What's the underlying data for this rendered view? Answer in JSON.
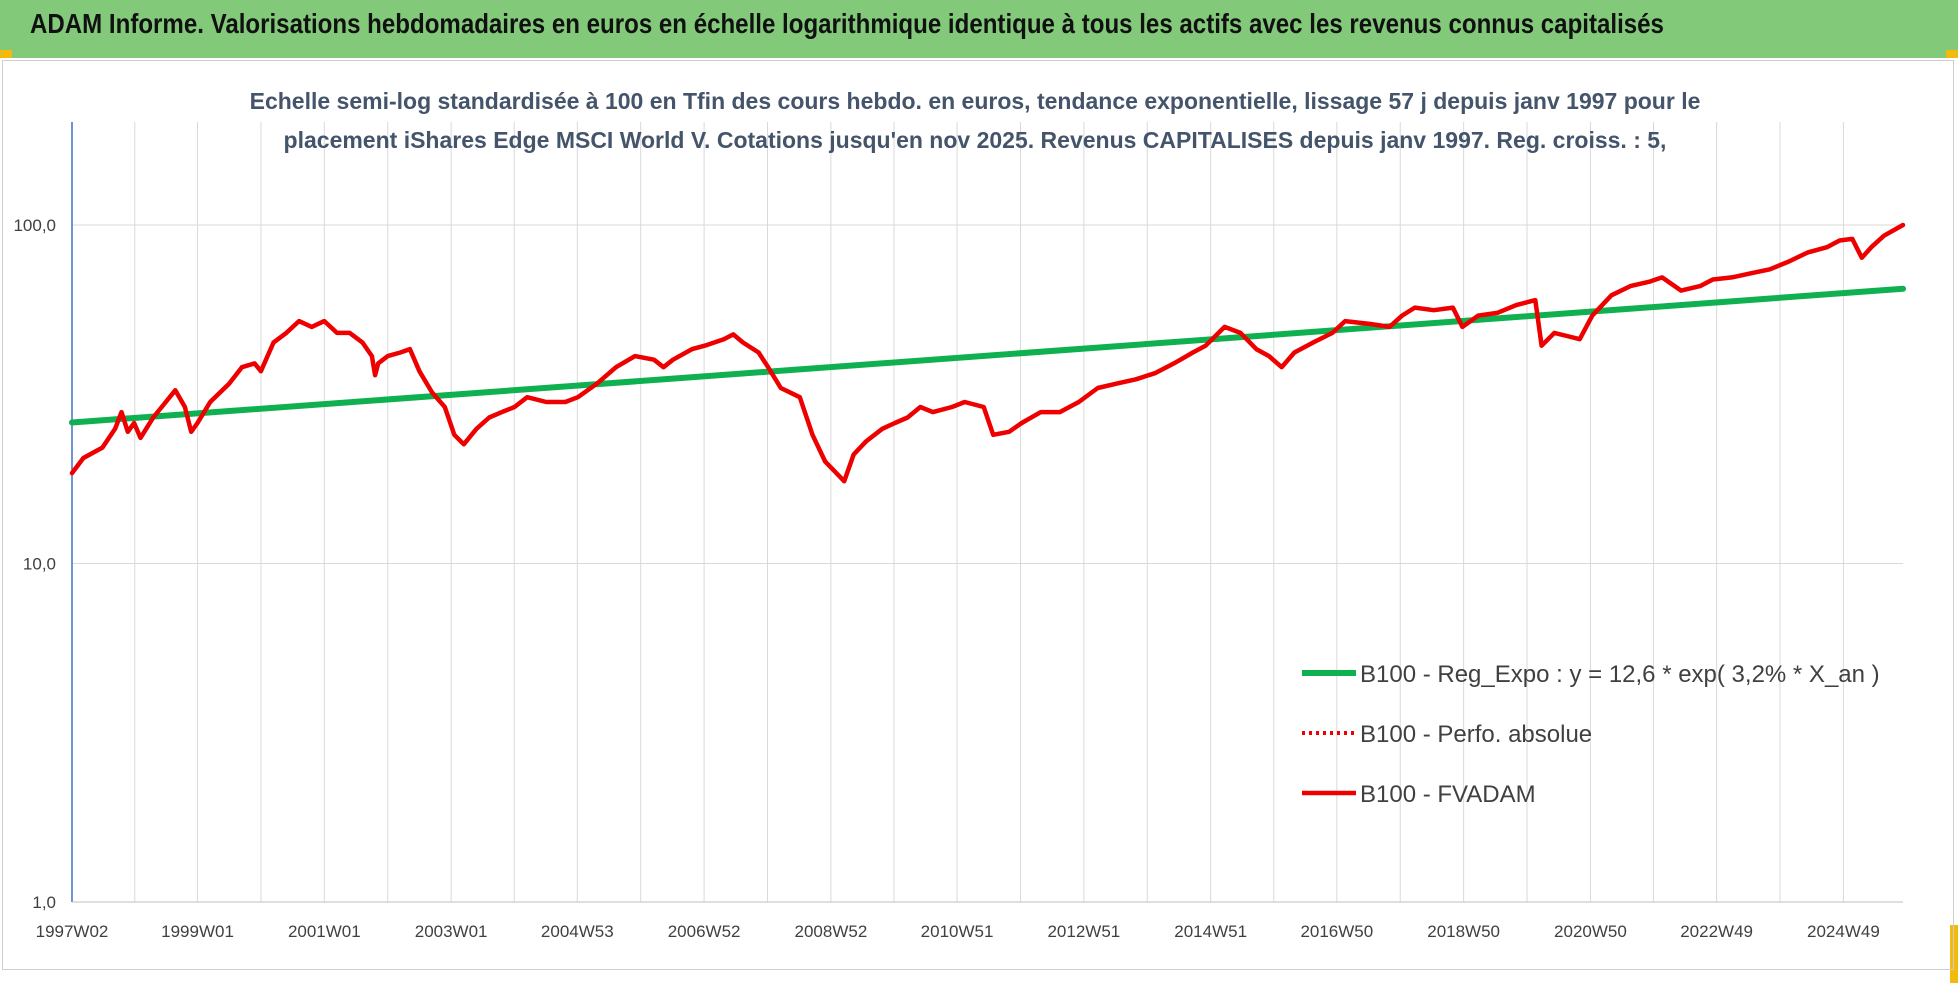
{
  "header": {
    "title": "ADAM Informe. Valorisations hebdomadaires en euros en échelle logarithmique identique à tous les actifs avec les revenus connus capitalisés"
  },
  "colors": {
    "header_bg": "#82c97a",
    "trend": "#0fb050",
    "fvadam": "#ee0000",
    "perfo": "#ee0000",
    "corner": "#f2b90f"
  },
  "chart_data": {
    "type": "line",
    "subtitle_lines": [
      "Echelle semi-log standardisée à 100 en Tfin des cours hebdo. en euros, tendance exponentielle, lissage 57 j depuis janv 1997 pour le",
      "placement iShares Edge MSCI World V. Cotations jusqu'en nov 2025. Revenus CAPITALISES depuis janv 1997. Reg. croiss. : 5,"
    ],
    "y_scale": "log",
    "ylim": [
      1,
      180
    ],
    "y_ticks": [
      {
        "value": 1,
        "label": "1,0"
      },
      {
        "value": 10,
        "label": "10,0"
      },
      {
        "value": 100,
        "label": "100,0"
      }
    ],
    "xlim": [
      1997.02,
      2025.9
    ],
    "x_ticks": [
      {
        "value": 1997.02,
        "label": "1997W02"
      },
      {
        "value": 1999.0,
        "label": "1999W01"
      },
      {
        "value": 2001.0,
        "label": "2001W01"
      },
      {
        "value": 2003.0,
        "label": "2003W01"
      },
      {
        "value": 2004.99,
        "label": "2004W53"
      },
      {
        "value": 2006.99,
        "label": "2006W52"
      },
      {
        "value": 2008.99,
        "label": "2008W52"
      },
      {
        "value": 2010.98,
        "label": "2010W51"
      },
      {
        "value": 2012.98,
        "label": "2012W51"
      },
      {
        "value": 2014.98,
        "label": "2014W51"
      },
      {
        "value": 2016.97,
        "label": "2016W50"
      },
      {
        "value": 2018.97,
        "label": "2018W50"
      },
      {
        "value": 2020.97,
        "label": "2020W50"
      },
      {
        "value": 2022.96,
        "label": "2022W49"
      },
      {
        "value": 2024.96,
        "label": "2024W49"
      }
    ],
    "grid": "vertical-minor-and-horizontal-major",
    "legend_position": "bottom-right",
    "series": [
      {
        "name": "B100 - Reg_Expo : y = 12,6 * exp( 3,2% *  X_an )",
        "style": "solid-green",
        "points": [
          [
            1997.02,
            26.1
          ],
          [
            2025.9,
            64.8
          ]
        ]
      },
      {
        "name": "B100 - Perfo. absolue",
        "style": "dotted-red",
        "points": []
      },
      {
        "name": "B100 - FVADAM",
        "style": "solid-red",
        "points": [
          [
            1997.02,
            18.5
          ],
          [
            1997.2,
            20.5
          ],
          [
            1997.5,
            22
          ],
          [
            1997.7,
            25
          ],
          [
            1997.8,
            28
          ],
          [
            1997.9,
            24.5
          ],
          [
            1998.0,
            26
          ],
          [
            1998.1,
            23.5
          ],
          [
            1998.3,
            27
          ],
          [
            1998.5,
            30
          ],
          [
            1998.65,
            32.5
          ],
          [
            1998.8,
            29
          ],
          [
            1998.9,
            24.5
          ],
          [
            1999.0,
            26
          ],
          [
            1999.2,
            30
          ],
          [
            1999.5,
            34
          ],
          [
            1999.7,
            38
          ],
          [
            1999.9,
            39
          ],
          [
            2000.0,
            37
          ],
          [
            2000.2,
            45
          ],
          [
            2000.4,
            48
          ],
          [
            2000.6,
            52
          ],
          [
            2000.8,
            50
          ],
          [
            2001.0,
            52
          ],
          [
            2001.2,
            48
          ],
          [
            2001.4,
            48
          ],
          [
            2001.6,
            45
          ],
          [
            2001.75,
            41
          ],
          [
            2001.8,
            36
          ],
          [
            2001.85,
            39
          ],
          [
            2002.0,
            41
          ],
          [
            2002.2,
            42
          ],
          [
            2002.35,
            43
          ],
          [
            2002.5,
            37
          ],
          [
            2002.7,
            32
          ],
          [
            2002.9,
            29
          ],
          [
            2003.05,
            24
          ],
          [
            2003.2,
            22.5
          ],
          [
            2003.4,
            25
          ],
          [
            2003.6,
            27
          ],
          [
            2003.8,
            28
          ],
          [
            2004.0,
            29
          ],
          [
            2004.2,
            31
          ],
          [
            2004.5,
            30
          ],
          [
            2004.8,
            30
          ],
          [
            2005.0,
            31
          ],
          [
            2005.3,
            34
          ],
          [
            2005.6,
            38
          ],
          [
            2005.9,
            41
          ],
          [
            2006.2,
            40
          ],
          [
            2006.35,
            38
          ],
          [
            2006.5,
            40
          ],
          [
            2006.8,
            43
          ],
          [
            2007.0,
            44
          ],
          [
            2007.3,
            46
          ],
          [
            2007.45,
            47.5
          ],
          [
            2007.6,
            45
          ],
          [
            2007.85,
            42
          ],
          [
            2008.0,
            38
          ],
          [
            2008.2,
            33
          ],
          [
            2008.5,
            31
          ],
          [
            2008.7,
            24
          ],
          [
            2008.9,
            20
          ],
          [
            2009.2,
            17.5
          ],
          [
            2009.35,
            21
          ],
          [
            2009.55,
            23
          ],
          [
            2009.8,
            25
          ],
          [
            2010.0,
            26
          ],
          [
            2010.2,
            27
          ],
          [
            2010.4,
            29
          ],
          [
            2010.6,
            28
          ],
          [
            2010.9,
            29
          ],
          [
            2011.1,
            30
          ],
          [
            2011.4,
            29
          ],
          [
            2011.55,
            24
          ],
          [
            2011.8,
            24.5
          ],
          [
            2012.0,
            26
          ],
          [
            2012.3,
            28
          ],
          [
            2012.6,
            28
          ],
          [
            2012.9,
            30
          ],
          [
            2013.2,
            33
          ],
          [
            2013.5,
            34
          ],
          [
            2013.8,
            35
          ],
          [
            2014.1,
            36.5
          ],
          [
            2014.4,
            39
          ],
          [
            2014.7,
            42
          ],
          [
            2014.9,
            44
          ],
          [
            2015.2,
            50
          ],
          [
            2015.45,
            48
          ],
          [
            2015.7,
            43
          ],
          [
            2015.9,
            41
          ],
          [
            2016.1,
            38
          ],
          [
            2016.3,
            42
          ],
          [
            2016.6,
            45
          ],
          [
            2016.9,
            48
          ],
          [
            2017.1,
            52
          ],
          [
            2017.5,
            51
          ],
          [
            2017.8,
            50
          ],
          [
            2018.0,
            54
          ],
          [
            2018.2,
            57
          ],
          [
            2018.5,
            56
          ],
          [
            2018.8,
            57
          ],
          [
            2018.95,
            50
          ],
          [
            2019.2,
            54
          ],
          [
            2019.5,
            55
          ],
          [
            2019.8,
            58
          ],
          [
            2020.1,
            60
          ],
          [
            2020.2,
            44
          ],
          [
            2020.4,
            48
          ],
          [
            2020.6,
            47
          ],
          [
            2020.8,
            46
          ],
          [
            2021.0,
            54
          ],
          [
            2021.3,
            62
          ],
          [
            2021.6,
            66
          ],
          [
            2021.9,
            68
          ],
          [
            2022.1,
            70
          ],
          [
            2022.4,
            64
          ],
          [
            2022.7,
            66
          ],
          [
            2022.9,
            69
          ],
          [
            2023.2,
            70
          ],
          [
            2023.5,
            72
          ],
          [
            2023.8,
            74
          ],
          [
            2024.1,
            78
          ],
          [
            2024.4,
            83
          ],
          [
            2024.7,
            86
          ],
          [
            2024.9,
            90
          ],
          [
            2025.1,
            91
          ],
          [
            2025.25,
            80
          ],
          [
            2025.4,
            86
          ],
          [
            2025.6,
            93
          ],
          [
            2025.9,
            100
          ]
        ]
      }
    ]
  }
}
